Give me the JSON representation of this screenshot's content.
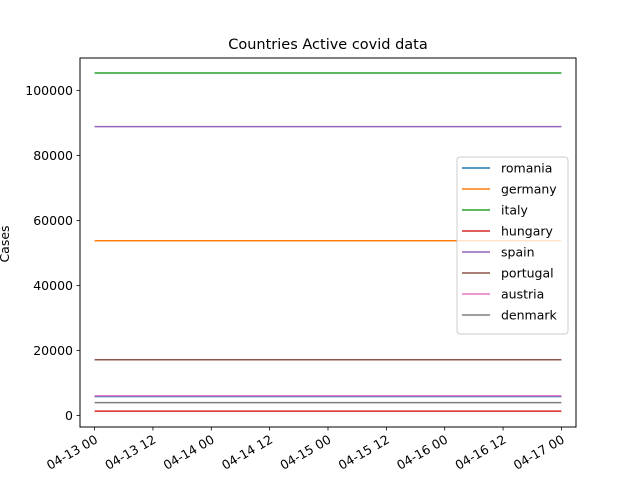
{
  "chart_data": {
    "type": "line",
    "title": "Countries Active covid data",
    "xlabel": "",
    "ylabel": "Cases",
    "x": [
      "04-13 00",
      "04-17 00"
    ],
    "x_ticks": [
      "04-13 00",
      "04-13 12",
      "04-14 00",
      "04-14 12",
      "04-15 00",
      "04-15 12",
      "04-16 00",
      "04-16 12",
      "04-17 00"
    ],
    "x_tick_rotation": 30,
    "xlim": [
      "04-12 21",
      "04-17 03"
    ],
    "ylim": [
      -3500,
      110000
    ],
    "y_ticks": [
      0,
      20000,
      40000,
      60000,
      80000,
      100000
    ],
    "grid": false,
    "legend_position": "center-right",
    "series": [
      {
        "name": "romania",
        "color": "#1f77b4",
        "values": [
          5900,
          5900
        ]
      },
      {
        "name": "germany",
        "color": "#ff7f0e",
        "values": [
          53800,
          53800
        ]
      },
      {
        "name": "italy",
        "color": "#2ca02c",
        "values": [
          105400,
          105400
        ]
      },
      {
        "name": "hungary",
        "color": "#d62728",
        "values": [
          1400,
          1400
        ]
      },
      {
        "name": "spain",
        "color": "#9467bd",
        "values": [
          88900,
          88900
        ]
      },
      {
        "name": "portugal",
        "color": "#8c564b",
        "values": [
          17200,
          17200
        ]
      },
      {
        "name": "austria",
        "color": "#e377c2",
        "values": [
          6100,
          6100
        ]
      },
      {
        "name": "denmark",
        "color": "#7f7f7f",
        "values": [
          4000,
          4000
        ]
      }
    ]
  }
}
